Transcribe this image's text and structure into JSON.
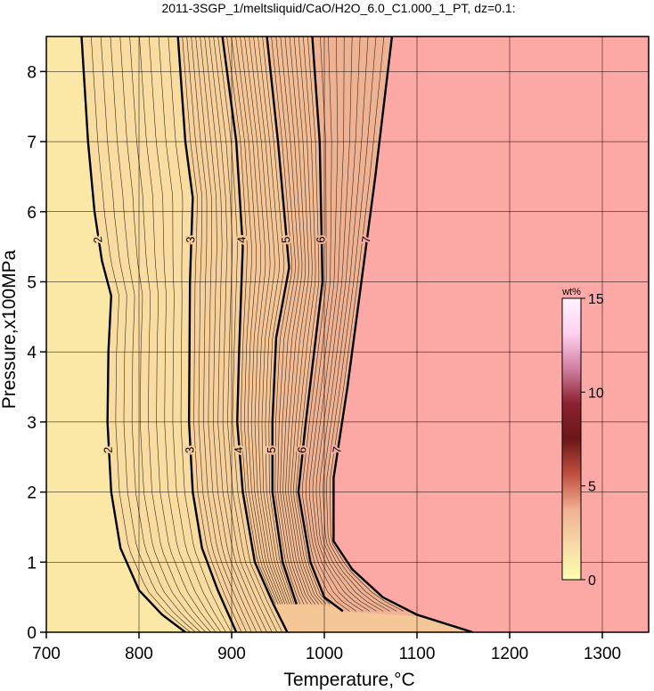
{
  "chart_data": {
    "type": "contour",
    "title": "2011-3SGP_1/meltsliquid/CaO/H2O_6.0_C1.000_1_PT, dz=0.1:",
    "xlabel": "Temperature,°C",
    "ylabel": "Pressure,x100MPa",
    "xlim": [
      700,
      1350
    ],
    "ylim": [
      0,
      8.5
    ],
    "xticks": [
      700,
      800,
      900,
      1000,
      1100,
      1200,
      1300
    ],
    "yticks": [
      0,
      1,
      2,
      3,
      4,
      5,
      6,
      7,
      8
    ],
    "grid": true,
    "background_color": "#fbe7a6",
    "fill_colors": [
      "#f9dca0",
      "#f7d19b",
      "#f5c797",
      "#f2bc94",
      "#efb293",
      "#fca8a4"
    ],
    "contours": [
      {
        "level": 2,
        "x": [
          738,
          745,
          752,
          760,
          770,
          767,
          766,
          770,
          780,
          800,
          825,
          850
        ],
        "y": [
          8.5,
          7,
          6,
          5.3,
          4.8,
          4,
          3,
          2,
          1.2,
          0.6,
          0.25,
          0
        ]
      },
      {
        "level": 3,
        "x": [
          842,
          850,
          858,
          855,
          854,
          858,
          868,
          885,
          905
        ],
        "y": [
          8.5,
          7,
          6.2,
          5,
          3,
          2,
          1.2,
          0.6,
          0
        ]
      },
      {
        "level": 4,
        "x": [
          890,
          905,
          912,
          908,
          906,
          912,
          925,
          945,
          960
        ],
        "y": [
          8.5,
          7,
          5.5,
          4,
          3,
          2,
          1,
          0.4,
          0
        ]
      },
      {
        "level": 5,
        "x": [
          938,
          950,
          962,
          948,
          944,
          944,
          955,
          970
        ],
        "y": [
          8.5,
          7,
          5.2,
          4.2,
          3,
          2,
          1,
          0.4
        ]
      },
      {
        "level": 6,
        "x": [
          987,
          995,
          998,
          980,
          972,
          985,
          1000,
          1020
        ],
        "y": [
          8.5,
          7,
          5,
          3,
          2,
          1,
          0.5,
          0.3
        ]
      },
      {
        "level": 7,
        "x": [
          1073,
          1055,
          1040,
          1025,
          1010,
          1010,
          1030,
          1063,
          1100,
          1160
        ],
        "y": [
          8.5,
          6.5,
          5,
          3.5,
          2.2,
          1.3,
          0.9,
          0.5,
          0.25,
          0
        ]
      }
    ],
    "colorbar": {
      "label": "wt%",
      "lim": [
        0,
        15
      ],
      "ticks": [
        0,
        5,
        10,
        15
      ],
      "colors": [
        "#ffffb0",
        "#f7d9a6",
        "#f0b092",
        "#c05040",
        "#6a1818",
        "#8a2030",
        "#d080a0",
        "#ffd0f0",
        "#fff4ff"
      ]
    }
  }
}
